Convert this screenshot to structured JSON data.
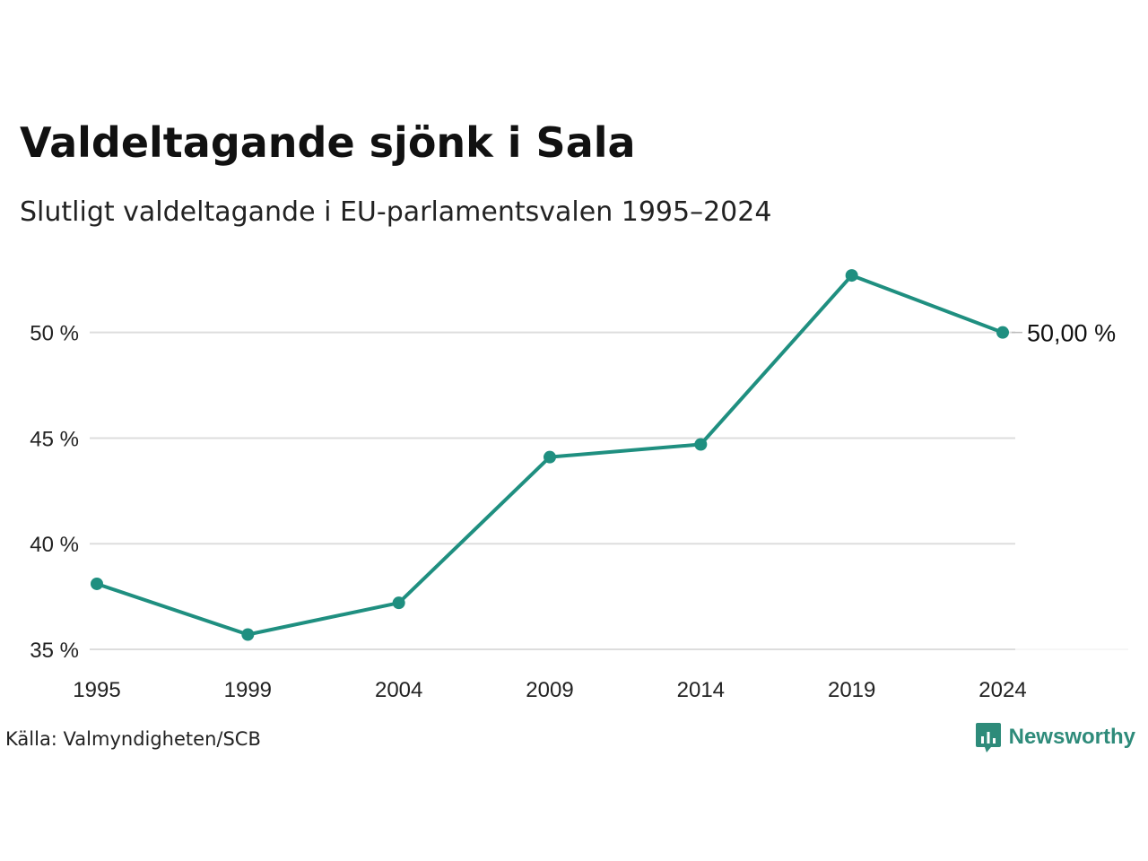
{
  "title": "Valdeltagande sjönk i Sala",
  "subtitle": "Slutligt valdeltagande i EU-parlamentsvalen 1995–2024",
  "source": "Källa: Valmyndigheten/SCB",
  "brand": {
    "name": "Newsworthy",
    "icon": "bar-chart-speech-bubble-icon",
    "color": "#2e8b7a"
  },
  "colors": {
    "line": "#1f8f80",
    "grid": "#dddddd"
  },
  "chart_data": {
    "type": "line",
    "title": "Valdeltagande sjönk i Sala",
    "subtitle": "Slutligt valdeltagande i EU-parlamentsvalen 1995–2024",
    "xlabel": "",
    "ylabel": "",
    "x": [
      "1995",
      "1999",
      "2004",
      "2009",
      "2014",
      "2019",
      "2024"
    ],
    "series": [
      {
        "values": [
          38.1,
          35.7,
          37.2,
          44.1,
          44.7,
          52.7,
          50.0
        ]
      }
    ],
    "ylim": [
      35,
      53
    ],
    "yticks": [
      35,
      40,
      45,
      50
    ],
    "ytick_labels": [
      "35 %",
      "40 %",
      "45 %",
      "50 %"
    ],
    "end_label": "50,00 %",
    "grid": "horizontal",
    "legend": "none",
    "markers": true
  }
}
